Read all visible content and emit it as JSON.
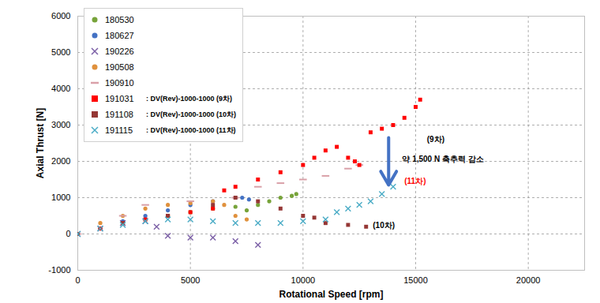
{
  "chart_data": {
    "type": "scatter",
    "x_label": "Rotational Speed [rpm]",
    "y_label": "Axial Thrust [N]",
    "xlim": [
      0,
      22500
    ],
    "xticks": [
      0,
      5000,
      10000,
      15000,
      20000
    ],
    "ylim": [
      -1000,
      6000
    ],
    "yticks": [
      -1000,
      0,
      1000,
      2000,
      3000,
      4000,
      5000,
      6000
    ],
    "grid": true,
    "legend": "upper left",
    "series": [
      {
        "name": "180530",
        "color": "#77a33a",
        "marker": "circle",
        "x": [
          0,
          1000,
          2000,
          3000,
          4000,
          5000,
          6000,
          7000,
          7500,
          8000,
          8500,
          9000,
          9500,
          9700
        ],
        "values": [
          0,
          150,
          300,
          400,
          500,
          600,
          700,
          750,
          650,
          800,
          900,
          1000,
          1050,
          1100
        ]
      },
      {
        "name": "180627",
        "color": "#4472c4",
        "marker": "circle",
        "x": [
          0,
          1000,
          2000,
          3000,
          4000,
          5000,
          6000,
          7000,
          7300,
          7600
        ],
        "values": [
          0,
          150,
          350,
          500,
          650,
          800,
          900,
          1000,
          1000,
          950
        ]
      },
      {
        "name": "190226",
        "color": "#7b5fa6",
        "marker": "x",
        "x": [
          0,
          1000,
          2000,
          3000,
          3500,
          4000,
          5000,
          6000,
          7000,
          8000
        ],
        "values": [
          0,
          150,
          300,
          350,
          200,
          -50,
          -100,
          -100,
          -200,
          -300
        ]
      },
      {
        "name": "190508",
        "color": "#e0913d",
        "marker": "circle",
        "x": [
          0,
          1000,
          2000,
          3000,
          4000,
          5000,
          6000,
          6500,
          7000,
          7500
        ],
        "values": [
          0,
          300,
          500,
          700,
          800,
          850,
          900,
          800,
          500,
          400
        ]
      },
      {
        "name": "190910",
        "color": "#d9a0a8",
        "marker": "dash",
        "x": [
          0,
          2000,
          3000,
          5000,
          7000,
          8000,
          9000,
          10000,
          11000,
          12000,
          12500
        ],
        "values": [
          0,
          500,
          800,
          900,
          1000,
          1300,
          1400,
          1500,
          1600,
          1800,
          1900
        ]
      },
      {
        "name": "191031",
        "color": "#ff0000",
        "marker": "square",
        "x": [
          0,
          1000,
          2000,
          3000,
          4000,
          5000,
          6000,
          6500,
          7000,
          8000,
          9000,
          10000,
          10500,
          11000,
          11500,
          12000,
          12300,
          12500,
          13000,
          13500,
          14000,
          14500,
          15000,
          15200
        ],
        "values": [
          0,
          150,
          300,
          400,
          500,
          600,
          700,
          1200,
          1300,
          1500,
          1700,
          1900,
          2100,
          2300,
          2400,
          2100,
          2000,
          1900,
          2800,
          2900,
          3000,
          3200,
          3500,
          3700
        ]
      },
      {
        "name": "191108",
        "color": "#953735",
        "marker": "square",
        "x": [
          0,
          2000,
          4000,
          6000,
          7000,
          8000,
          9000,
          10000,
          10500,
          11000,
          12000,
          12800
        ],
        "values": [
          0,
          300,
          500,
          800,
          1000,
          900,
          700,
          500,
          450,
          300,
          250,
          200
        ]
      },
      {
        "name": "191115",
        "color": "#4bacc6",
        "marker": "x",
        "x": [
          0,
          1000,
          2000,
          3000,
          4000,
          5000,
          6000,
          7000,
          8000,
          9000,
          10000,
          11000,
          11500,
          12000,
          12500,
          13000,
          13500,
          14000
        ],
        "values": [
          0,
          150,
          250,
          350,
          400,
          400,
          350,
          300,
          300,
          300,
          350,
          400,
          600,
          700,
          800,
          900,
          1100,
          1300
        ]
      }
    ],
    "annotations": [
      {
        "series": "191031",
        "text": ": DV(Rev)-1000-1000 (9차)"
      },
      {
        "series": "191108",
        "text": ": DV(Rev)-1000-1000 (10차)"
      },
      {
        "series": "191115",
        "text": ": DV(Rev)-1000-1000 (11차)"
      },
      {
        "text": "(9차)",
        "x": 15500,
        "y": 2600,
        "color": "#000000"
      },
      {
        "text": "(11차)",
        "x": 14500,
        "y": 1450,
        "color": "#ff0000"
      },
      {
        "text": "(10차)",
        "x": 13100,
        "y": 230,
        "color": "#000000"
      },
      {
        "text": "약 1,500 N 축추력 감소",
        "x": 14400,
        "y": 2050,
        "color": "#000000",
        "arrow_from": [
          13800,
          2650
        ],
        "arrow_to": [
          13800,
          1350
        ],
        "arrow_color": "#4472c4"
      }
    ]
  }
}
